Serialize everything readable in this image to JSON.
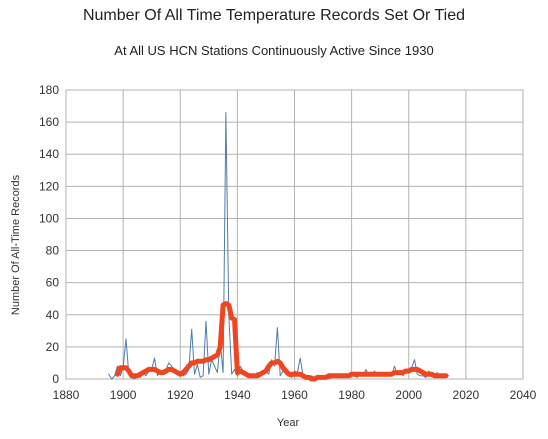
{
  "chart_data": {
    "type": "line",
    "title": "Number Of All Time Temperature Records Set Or Tied",
    "subtitle": "At All US HCN Stations Continuously Active Since 1930",
    "xlabel": "Year",
    "ylabel": "Number Of All-Time Records",
    "xlim": [
      1880,
      2040
    ],
    "ylim": [
      0,
      180
    ],
    "x_ticks": [
      1880,
      1900,
      1920,
      1940,
      1960,
      1980,
      2000,
      2020,
      2040
    ],
    "y_ticks": [
      0,
      20,
      40,
      60,
      80,
      100,
      120,
      140,
      160,
      180
    ],
    "grid": "horizontal and vertical",
    "legend": "none",
    "series": [
      {
        "color": "#4f7dab",
        "line_width": 1,
        "x": [
          1895,
          1896,
          1897,
          1898,
          1899,
          1900,
          1901,
          1902,
          1903,
          1904,
          1905,
          1906,
          1907,
          1908,
          1909,
          1910,
          1911,
          1912,
          1913,
          1914,
          1915,
          1916,
          1917,
          1918,
          1919,
          1920,
          1921,
          1922,
          1923,
          1924,
          1925,
          1926,
          1927,
          1928,
          1929,
          1930,
          1931,
          1932,
          1933,
          1934,
          1935,
          1936,
          1937,
          1938,
          1939,
          1940,
          1941,
          1942,
          1943,
          1944,
          1945,
          1946,
          1947,
          1948,
          1949,
          1950,
          1951,
          1952,
          1953,
          1954,
          1955,
          1956,
          1957,
          1958,
          1959,
          1960,
          1961,
          1962,
          1963,
          1964,
          1965,
          1966,
          1967,
          1968,
          1969,
          1970,
          1971,
          1972,
          1973,
          1974,
          1975,
          1976,
          1977,
          1978,
          1979,
          1980,
          1981,
          1982,
          1983,
          1984,
          1985,
          1986,
          1987,
          1988,
          1989,
          1990,
          1991,
          1992,
          1993,
          1994,
          1995,
          1996,
          1997,
          1998,
          1999,
          2000,
          2001,
          2002,
          2003,
          2004,
          2005,
          2006,
          2007,
          2008,
          2009,
          2010,
          2011,
          2012,
          2013,
          2014
        ],
        "y": [
          3,
          0,
          2,
          8,
          2,
          7,
          25,
          3,
          1,
          0,
          2,
          1,
          4,
          2,
          5,
          6,
          13,
          2,
          5,
          4,
          6,
          10,
          8,
          5,
          5,
          4,
          2,
          3,
          6,
          31,
          3,
          9,
          1,
          2,
          36,
          3,
          12,
          8,
          4,
          23,
          4,
          166,
          40,
          3,
          6,
          2,
          8,
          5,
          3,
          2,
          1,
          2,
          4,
          2,
          3,
          5,
          3,
          12,
          8,
          32,
          2,
          5,
          3,
          2,
          1,
          5,
          4,
          13,
          2,
          1,
          0,
          2,
          1,
          0,
          1,
          2,
          1,
          0,
          1,
          3,
          1,
          2,
          1,
          3,
          2,
          4,
          2,
          1,
          4,
          2,
          6,
          3,
          2,
          5,
          2,
          3,
          4,
          2,
          3,
          2,
          8,
          3,
          5,
          2,
          6,
          4,
          7,
          12,
          3,
          2,
          2,
          1,
          5,
          3,
          2,
          4,
          1,
          3,
          2,
          2
        ]
      },
      {
        "color": "#f0461f",
        "line_width": 5,
        "x": [
          1898,
          1899,
          1900,
          1901,
          1902,
          1903,
          1904,
          1905,
          1906,
          1907,
          1908,
          1909,
          1910,
          1911,
          1912,
          1913,
          1914,
          1915,
          1916,
          1917,
          1918,
          1919,
          1920,
          1921,
          1922,
          1923,
          1924,
          1925,
          1926,
          1927,
          1928,
          1929,
          1930,
          1931,
          1932,
          1933,
          1934,
          1935,
          1936,
          1937,
          1938,
          1939,
          1940,
          1941,
          1942,
          1943,
          1944,
          1945,
          1946,
          1947,
          1948,
          1949,
          1950,
          1951,
          1952,
          1953,
          1954,
          1955,
          1956,
          1957,
          1958,
          1959,
          1960,
          1961,
          1962,
          1963,
          1964,
          1965,
          1966,
          1967,
          1968,
          1969,
          1970,
          1971,
          1972,
          1973,
          1974,
          1975,
          1976,
          1977,
          1978,
          1979,
          1980,
          1981,
          1982,
          1983,
          1984,
          1985,
          1986,
          1987,
          1988,
          1989,
          1990,
          1991,
          1992,
          1993,
          1994,
          1995,
          1996,
          1997,
          1998,
          1999,
          2000,
          2001,
          2002,
          2003,
          2004,
          2005,
          2006,
          2007,
          2008,
          2009,
          2010,
          2011,
          2012,
          2013
        ],
        "y": [
          3,
          7,
          7,
          7,
          5,
          2,
          2,
          2,
          3,
          4,
          5,
          6,
          6,
          6,
          5,
          4,
          4,
          5,
          6,
          6,
          5,
          4,
          3,
          4,
          6,
          8,
          10,
          10,
          11,
          11,
          11,
          12,
          12,
          13,
          14,
          15,
          20,
          46,
          47,
          46,
          38,
          37,
          4,
          5,
          4,
          3,
          2,
          2,
          2,
          2,
          3,
          4,
          5,
          8,
          10,
          10,
          11,
          10,
          7,
          5,
          3,
          3,
          3,
          3,
          3,
          2,
          1,
          1,
          0,
          0,
          1,
          1,
          1,
          1,
          2,
          2,
          2,
          2,
          2,
          2,
          2,
          2,
          3,
          3,
          3,
          3,
          3,
          3,
          3,
          3,
          3,
          3,
          3,
          3,
          3,
          3,
          3,
          4,
          4,
          4,
          4,
          5,
          5,
          6,
          6,
          6,
          5,
          4,
          3,
          3,
          3,
          2,
          2,
          2,
          2,
          2
        ]
      }
    ]
  }
}
